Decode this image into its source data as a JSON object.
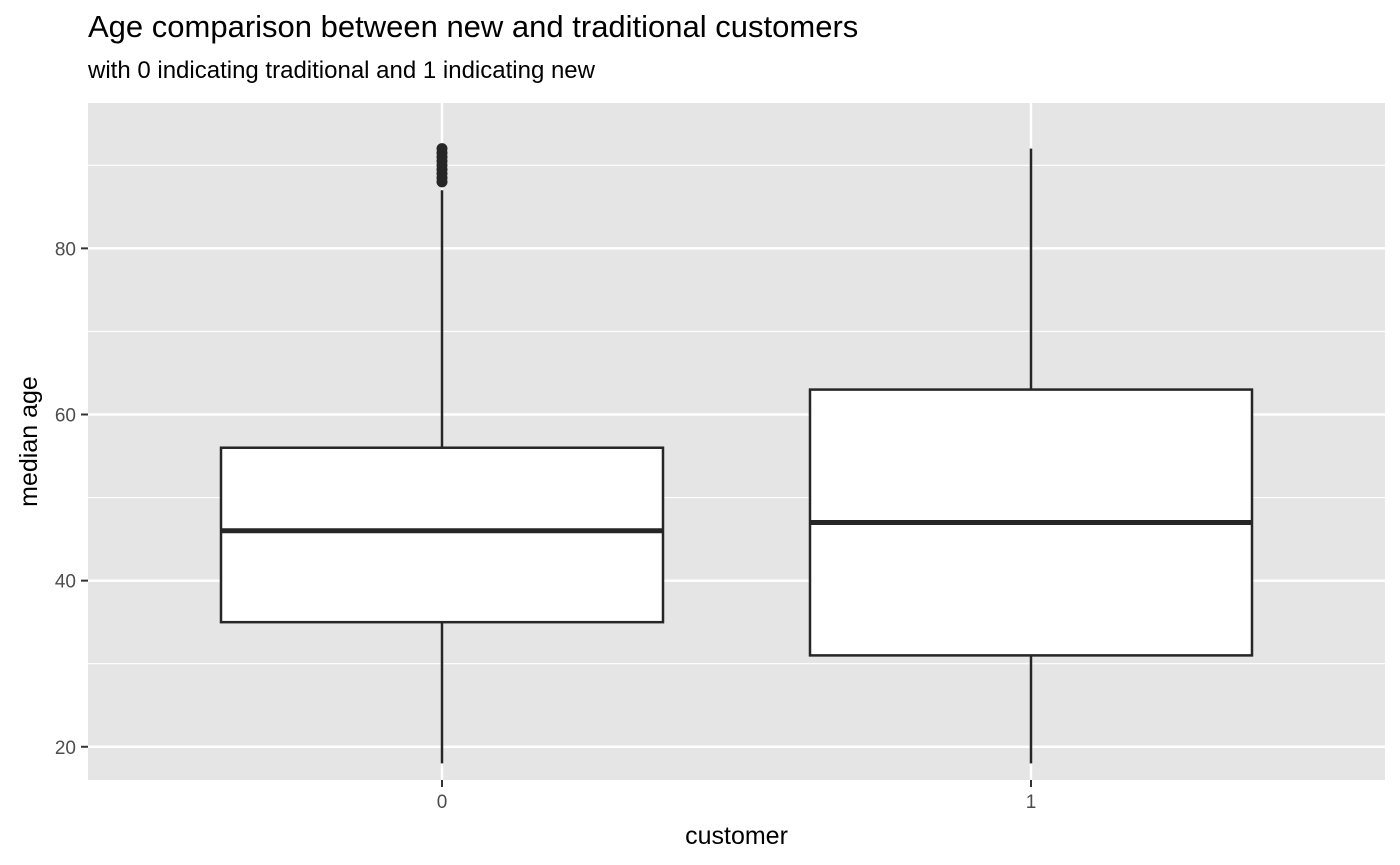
{
  "chart_data": {
    "type": "boxplot",
    "title": "Age comparison between new and traditional customers",
    "subtitle": "with 0 indicating traditional and 1 indicating new",
    "xlabel": "customer",
    "ylabel": "median age",
    "categories": [
      "0",
      "1"
    ],
    "ylim": [
      16,
      97.5
    ],
    "y_ticks": [
      20,
      40,
      60,
      80
    ],
    "grid": true,
    "boxes": [
      {
        "category": "0",
        "whisker_low": 18,
        "q1": 35,
        "median": 46,
        "q3": 56,
        "whisker_high": 87,
        "outliers": [
          88,
          88.5,
          89,
          89.5,
          90,
          90.5,
          91,
          91.5,
          92
        ]
      },
      {
        "category": "1",
        "whisker_low": 18,
        "q1": 31,
        "median": 47,
        "q3": 63,
        "whisker_high": 92,
        "outliers": []
      }
    ],
    "colors": {
      "panel": "#e5e5e5",
      "grid": "#ffffff",
      "box_fill": "#ffffff",
      "box_stroke": "#262626"
    }
  }
}
